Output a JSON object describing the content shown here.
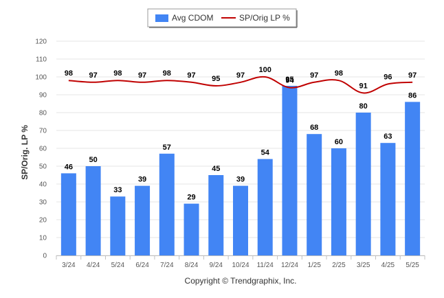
{
  "chart_data": {
    "type": "bar",
    "categories": [
      "3/24",
      "4/24",
      "5/24",
      "6/24",
      "7/24",
      "8/24",
      "9/24",
      "10/24",
      "11/24",
      "12/24",
      "1/25",
      "2/25",
      "3/25",
      "4/25",
      "5/25"
    ],
    "series": [
      {
        "name": "Avg CDOM",
        "type": "bar",
        "color": "#4285f4",
        "values": [
          46,
          50,
          33,
          39,
          57,
          29,
          45,
          39,
          54,
          95,
          68,
          60,
          80,
          63,
          86
        ]
      },
      {
        "name": "SP/Orig LP %",
        "type": "line",
        "color": "#c00000",
        "values": [
          98,
          97,
          98,
          97,
          98,
          97,
          95,
          97,
          100,
          94,
          97,
          98,
          91,
          96,
          97
        ]
      }
    ],
    "ylabel": "SP/Orig. LP %",
    "ylim": [
      0,
      120
    ],
    "yticks": [
      0,
      10,
      20,
      30,
      40,
      50,
      60,
      70,
      80,
      90,
      100,
      110,
      120
    ],
    "grid": true,
    "legend_position": "top-center"
  },
  "footer": {
    "copyright": "Copyright © Trendgraphix, Inc."
  }
}
